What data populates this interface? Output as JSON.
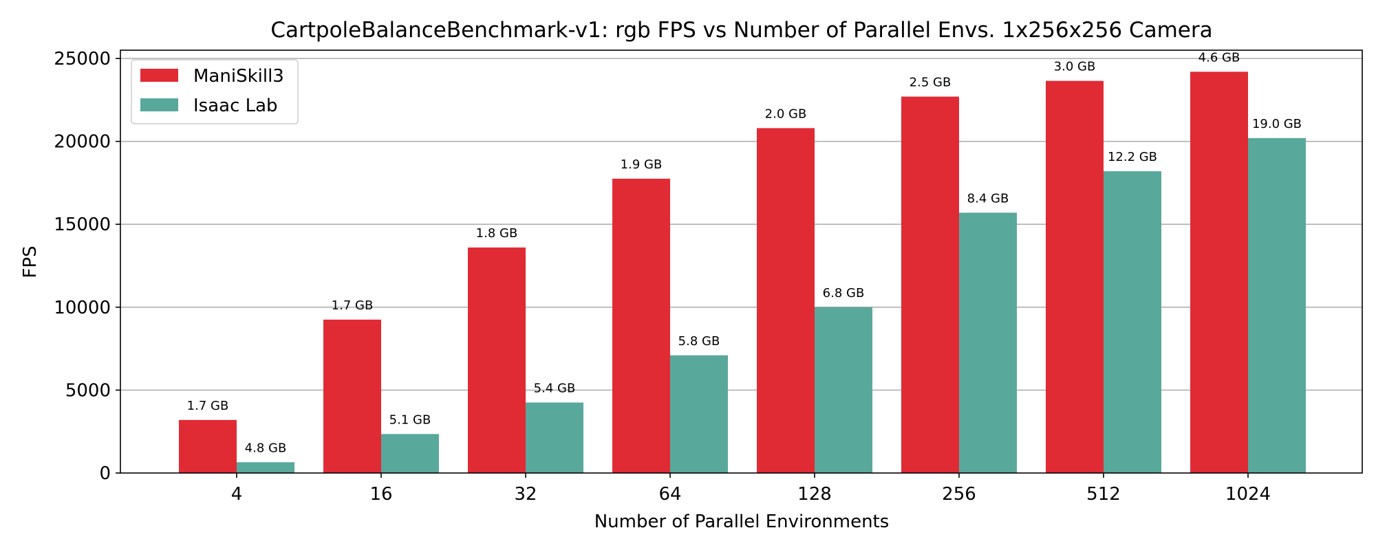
{
  "chart_data": {
    "type": "bar",
    "title": "CartpoleBalanceBenchmark-v1: rgb FPS vs Number of Parallel Envs. 1x256x256 Camera",
    "xlabel": "Number of Parallel Environments",
    "ylabel": "FPS",
    "ylim": [
      0,
      25500
    ],
    "yticks": [
      0,
      5000,
      10000,
      15000,
      20000,
      25000
    ],
    "grid": "y",
    "legend_position": "top-left",
    "categories": [
      "4",
      "16",
      "32",
      "64",
      "128",
      "256",
      "512",
      "1024"
    ],
    "series": [
      {
        "name": "ManiSkill3",
        "color": "#e02b35",
        "values": [
          3200,
          9250,
          13600,
          17750,
          20800,
          22700,
          23650,
          24200
        ],
        "labels": [
          "1.7 GB",
          "1.7 GB",
          "1.8 GB",
          "1.9 GB",
          "2.0 GB",
          "2.5 GB",
          "3.0 GB",
          "4.6 GB"
        ]
      },
      {
        "name": "Isaac Lab",
        "color": "#59a89c",
        "values": [
          650,
          2350,
          4250,
          7100,
          10000,
          15700,
          18200,
          20200
        ],
        "labels": [
          "4.8 GB",
          "5.1 GB",
          "5.4 GB",
          "5.8 GB",
          "6.8 GB",
          "8.4 GB",
          "12.2 GB",
          "19.0 GB"
        ]
      }
    ]
  }
}
